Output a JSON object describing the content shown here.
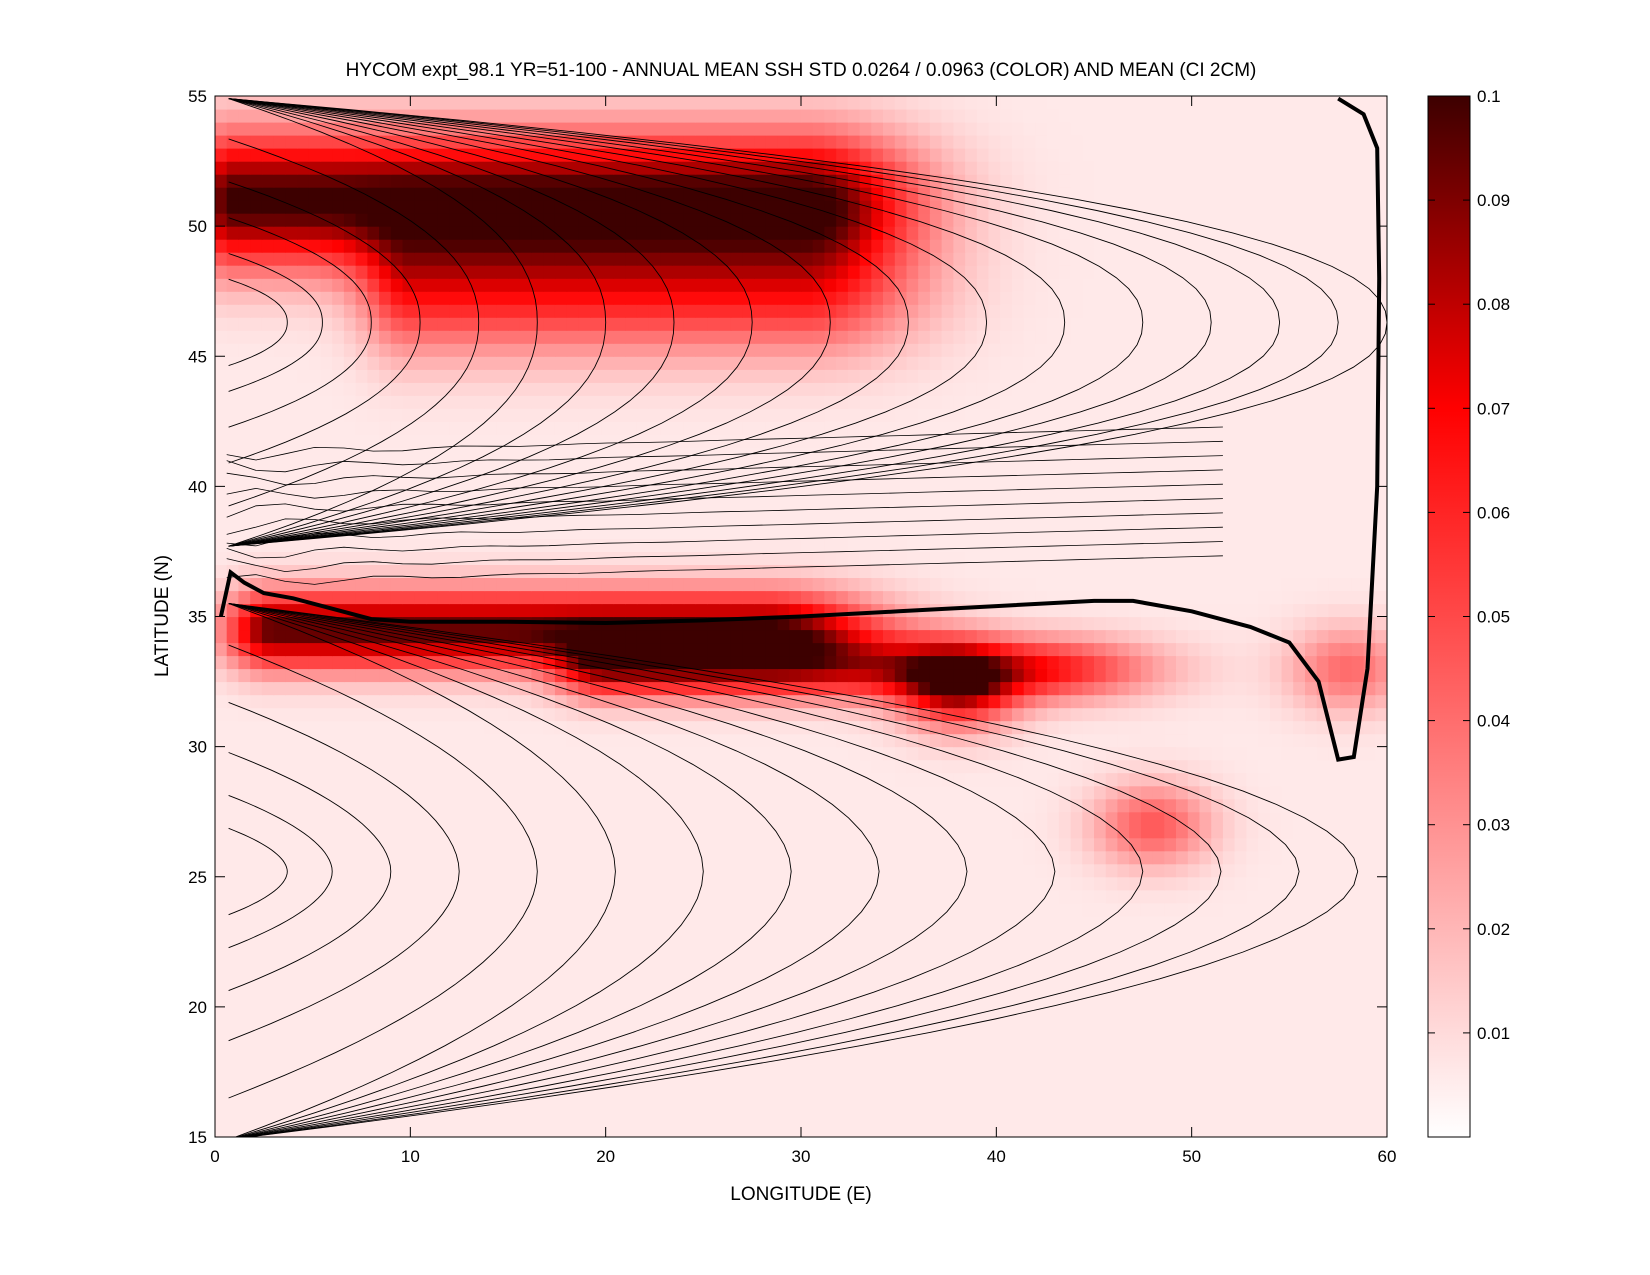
{
  "chart_data": {
    "type": "heatmap",
    "title": "HYCOM expt_98.1 YR=51-100 - ANNUAL MEAN SSH STD 0.0264 / 0.0963 (COLOR) AND MEAN (CI 2CM)",
    "xlabel": "LONGITUDE (E)",
    "ylabel": "LATITUDE (N)",
    "xlim": [
      0,
      60
    ],
    "ylim": [
      15,
      55
    ],
    "x_ticks": [
      "0",
      "10",
      "20",
      "30",
      "40",
      "50",
      "60"
    ],
    "y_ticks": [
      "15",
      "20",
      "25",
      "30",
      "35",
      "40",
      "45",
      "50",
      "55"
    ],
    "colorbar": {
      "range": [
        0,
        0.1
      ],
      "ticks": [
        "0.01",
        "0.02",
        "0.03",
        "0.04",
        "0.05",
        "0.06",
        "0.07",
        "0.08",
        "0.09",
        "0.1"
      ],
      "colors": [
        "#ffffff",
        "#ff0000",
        "#3d0000"
      ]
    },
    "std_field_features": [
      {
        "kind": "zonal_band",
        "lat": 51,
        "lon_start": 1,
        "lon_end": 30,
        "peak": 0.095,
        "width_lat": 2.6
      },
      {
        "kind": "zonal_band",
        "lat": 47.5,
        "lon_start": 10,
        "lon_end": 30,
        "peak": 0.05,
        "width_lat": 2.5
      },
      {
        "kind": "zonal_band",
        "lat": 34.5,
        "lon_start": 3,
        "lon_end": 28,
        "peak": 0.09,
        "width_lat": 1.5
      },
      {
        "kind": "zonal_band",
        "lat": 33,
        "lon_start": 20,
        "lon_end": 42,
        "peak": 0.06,
        "width_lat": 1.2
      },
      {
        "kind": "blob",
        "lon": 38,
        "lat": 32.3,
        "peak": 0.065
      },
      {
        "kind": "blob",
        "lon": 48,
        "lat": 27,
        "peak": 0.04
      },
      {
        "kind": "blob",
        "lon": 58,
        "lat": 33,
        "peak": 0.035
      }
    ],
    "zero_contour": [
      [
        0.3,
        35.0
      ],
      [
        0.8,
        36.7
      ],
      [
        1.5,
        36.3
      ],
      [
        2.5,
        35.9
      ],
      [
        4,
        35.7
      ],
      [
        6,
        35.3
      ],
      [
        8,
        34.9
      ],
      [
        10,
        34.8
      ],
      [
        15,
        34.8
      ],
      [
        20,
        34.75
      ],
      [
        25,
        34.85
      ],
      [
        30,
        35.0
      ],
      [
        35,
        35.2
      ],
      [
        40,
        35.4
      ],
      [
        45,
        35.6
      ],
      [
        47,
        35.6
      ],
      [
        50,
        35.2
      ],
      [
        53,
        34.6
      ],
      [
        55,
        34.0
      ],
      [
        56.5,
        32.5
      ],
      [
        57.5,
        29.5
      ],
      [
        58.3,
        29.6
      ],
      [
        59,
        33
      ],
      [
        59.5,
        40
      ],
      [
        59.6,
        48
      ],
      [
        59.5,
        53
      ],
      [
        58.8,
        54.3
      ],
      [
        57.5,
        54.9
      ]
    ]
  }
}
